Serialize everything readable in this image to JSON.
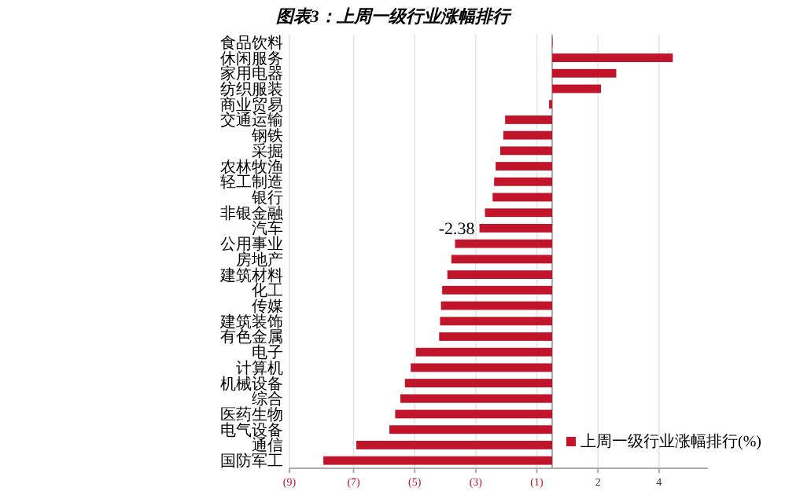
{
  "chart_data": {
    "type": "bar",
    "orientation": "horizontal",
    "title": "图表3：上周一级行业涨幅排行",
    "categories": [
      "食品饮料",
      "休闲服务",
      "家用电器",
      "纺织服装",
      "商业贸易",
      "交通运输",
      "钢铁",
      "采掘",
      "农林牧渔",
      "轻工制造",
      "银行",
      "非银金融",
      "汽车",
      "公用事业",
      "房地产",
      "建筑材料",
      "化工",
      "传媒",
      "建筑装饰",
      "有色金属",
      "电子",
      "计算机",
      "机械设备",
      "综合",
      "医药生物",
      "电气设备",
      "通信",
      "国防军工"
    ],
    "series": [
      {
        "name": "上周一级行业涨幅排行(%)",
        "color": "#c0152a",
        "values": [
          0,
          3.95,
          2.1,
          1.6,
          -0.1,
          -1.54,
          -1.6,
          -1.7,
          -1.85,
          -1.9,
          -1.95,
          -2.2,
          -2.38,
          -3.18,
          -3.3,
          -3.43,
          -3.6,
          -3.64,
          -3.67,
          -3.7,
          -4.46,
          -4.63,
          -4.82,
          -4.97,
          -5.14,
          -5.33,
          -6.41,
          -7.49
        ],
        "value_labels": [
          null,
          null,
          null,
          null,
          null,
          null,
          null,
          null,
          null,
          null,
          null,
          null,
          "-2.38",
          null,
          null,
          null,
          null,
          null,
          null,
          null,
          null,
          null,
          null,
          null,
          null,
          null,
          null,
          null
        ]
      }
    ],
    "xlim": [
      -8.6,
      5.1
    ],
    "xticks": [
      {
        "value": -8.6,
        "label": "(9)"
      },
      {
        "value": -6.5,
        "label": "(7)"
      },
      {
        "value": -4.5,
        "label": "(5)"
      },
      {
        "value": -2.5,
        "label": "(3)"
      },
      {
        "value": -0.5,
        "label": "(1)"
      },
      {
        "value": 1.5,
        "label": "2"
      },
      {
        "value": 3.5,
        "label": "4"
      }
    ],
    "grid": "x",
    "legend": "bottom right"
  }
}
